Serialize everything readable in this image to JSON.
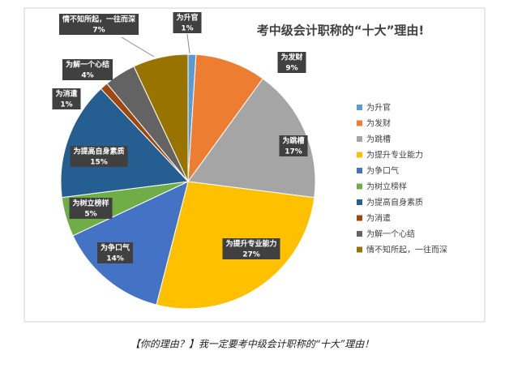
{
  "chart_data": {
    "type": "pie",
    "title": "考中级会计职称的“十大”理由!",
    "categories": [
      "为升官",
      "为发财",
      "为跳槽",
      "为提升专业能力",
      "为争口气",
      "为树立榜样",
      "为提高自身素质",
      "为消遣",
      "为解一个心结",
      "情不知所起，一往而深"
    ],
    "values": [
      1,
      9,
      17,
      27,
      14,
      5,
      15,
      1,
      4,
      7
    ],
    "value_labels": [
      "1%",
      "9%",
      "17%",
      "27%",
      "14%",
      "5%",
      "15%",
      "1%",
      "4%",
      "7%"
    ],
    "colors": [
      "#5b9bd5",
      "#ed7d31",
      "#a5a5a5",
      "#ffc000",
      "#4472c4",
      "#70ad47",
      "#255e91",
      "#9e480e",
      "#636363",
      "#997300"
    ],
    "legend": "right"
  },
  "caption": "【你的理由？】我一定要考中级会计职称的“十大”理由！"
}
